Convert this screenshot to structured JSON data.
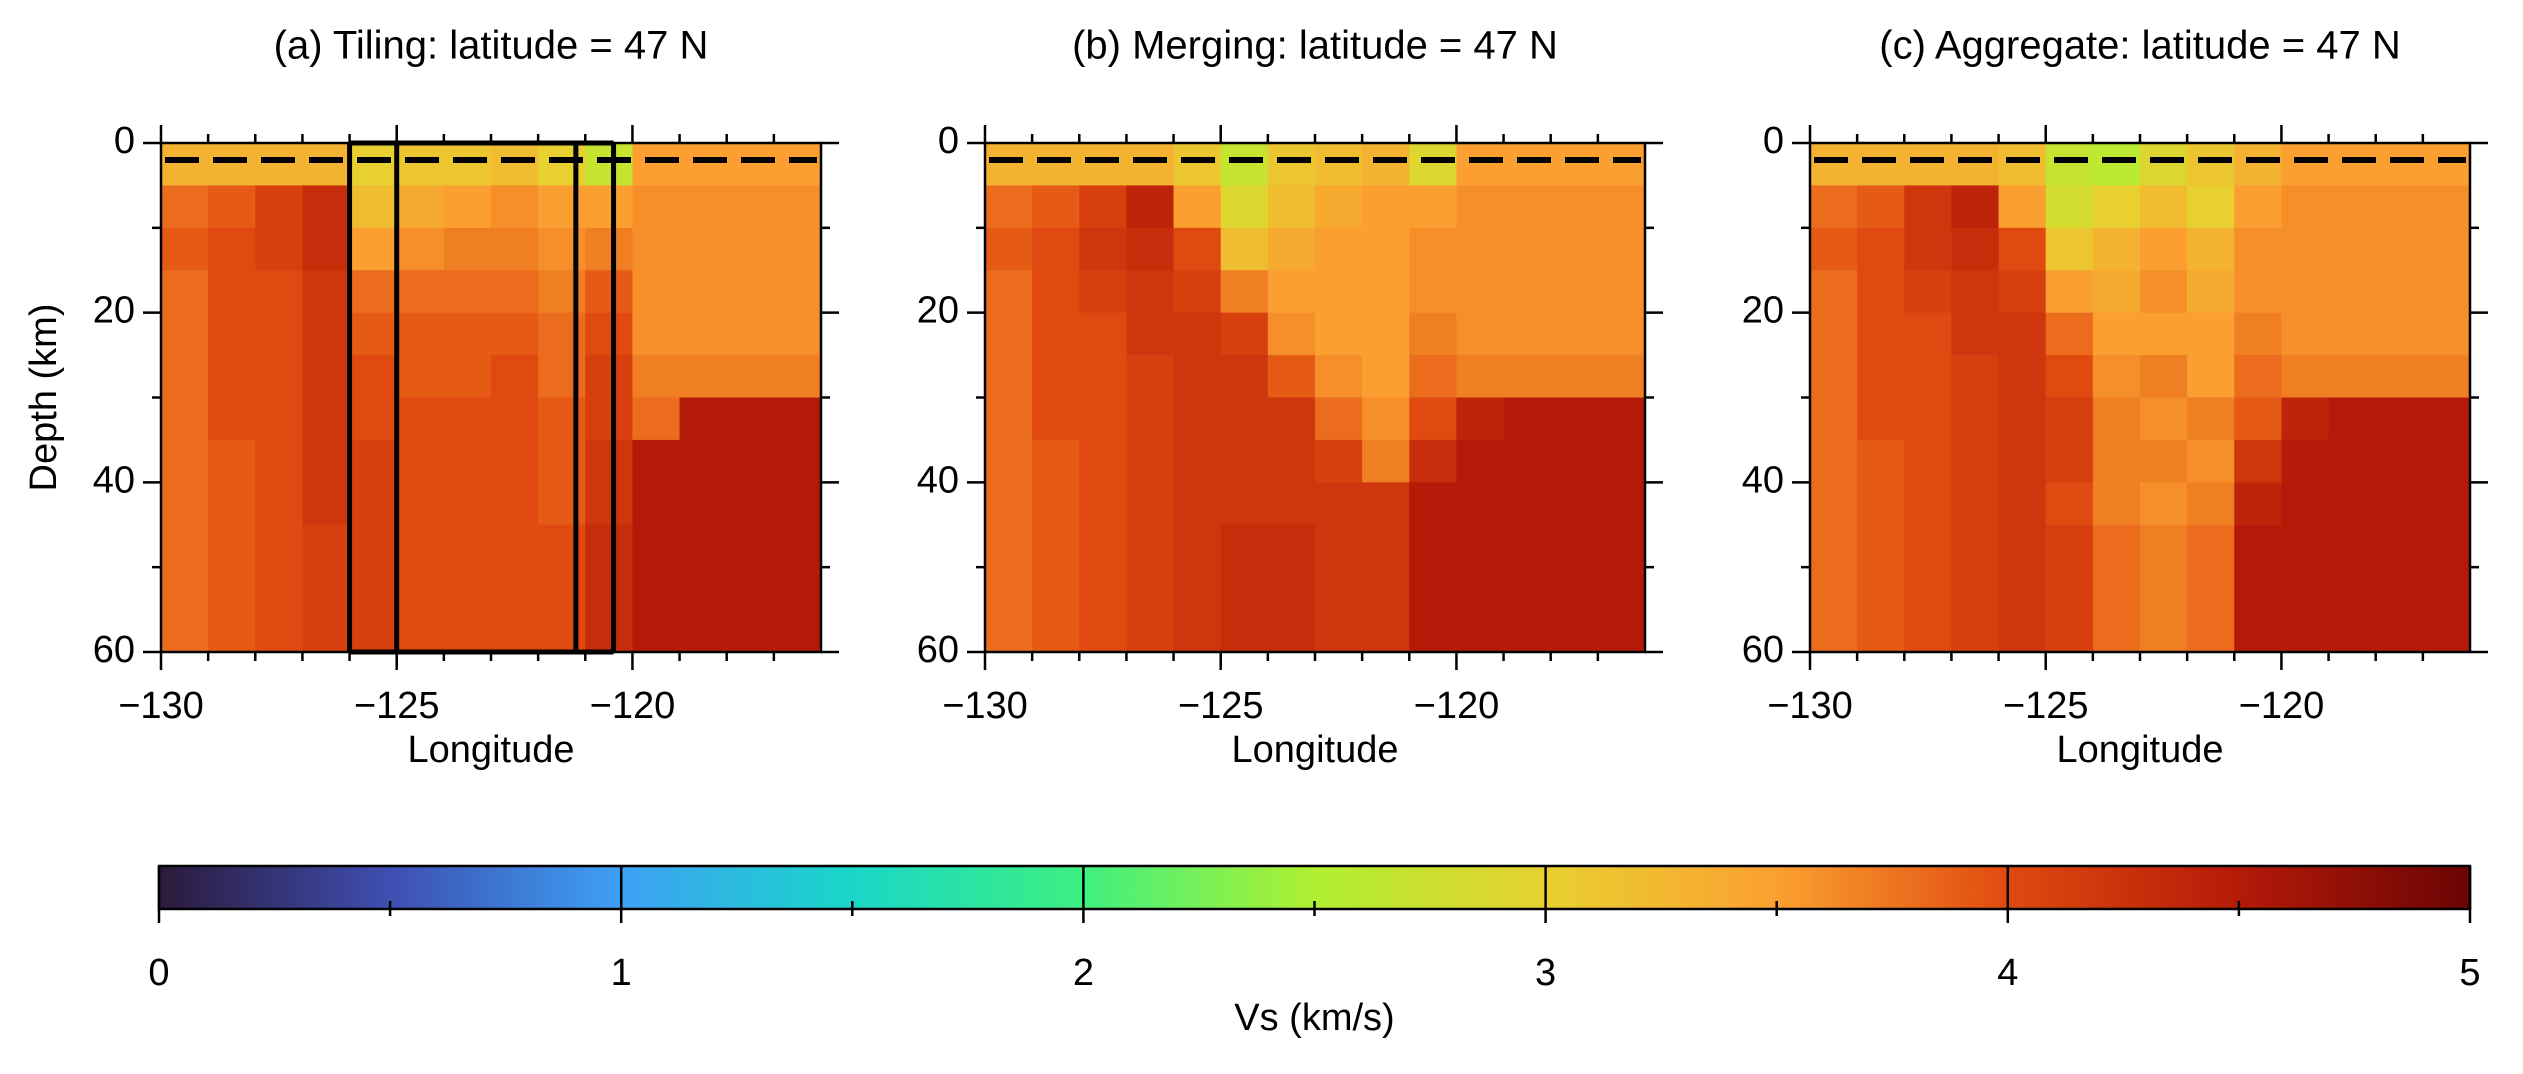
{
  "chart_data": [
    {
      "type": "heatmap",
      "title": "(a) Tiling: latitude = 47 N",
      "xlabel": "Longitude",
      "ylabel": "Depth (km)",
      "xlim": [
        -130,
        -116
      ],
      "ylim": [
        0,
        60
      ],
      "yreverse": true,
      "xticks": [
        {
          "value": -130,
          "label": "−130"
        },
        {
          "value": -125,
          "label": "−125"
        },
        {
          "value": -120,
          "label": "−120"
        }
      ],
      "xminorticks": [
        -129,
        -128,
        -127,
        -126,
        -124,
        -123,
        -122,
        -121,
        -119,
        -118,
        -117
      ],
      "yticks": [
        0,
        20,
        40,
        60
      ],
      "yminorticks": [
        10,
        30,
        50
      ],
      "reference_depth": 2,
      "tile_edges": [
        -126,
        -125,
        -121.2,
        -120.4
      ],
      "xbins": [
        -130,
        -129,
        -128,
        -127,
        -126,
        -125,
        -124,
        -123,
        -122,
        -121,
        -120,
        -119,
        -118,
        -117,
        -116
      ],
      "ybins": [
        0,
        5,
        10,
        15,
        20,
        25,
        30,
        35,
        40,
        45,
        50,
        55,
        60
      ],
      "values": [
        [
          3.3,
          3.3,
          3.3,
          3.3,
          3.0,
          3.1,
          3.1,
          3.2,
          3.0,
          2.7,
          3.5,
          3.5,
          3.5,
          3.5
        ],
        [
          3.8,
          3.9,
          4.1,
          4.3,
          3.2,
          3.4,
          3.5,
          3.6,
          3.5,
          3.5,
          3.6,
          3.6,
          3.6,
          3.6
        ],
        [
          3.9,
          4.0,
          4.1,
          4.3,
          3.5,
          3.6,
          3.7,
          3.7,
          3.6,
          3.7,
          3.6,
          3.6,
          3.6,
          3.6
        ],
        [
          3.8,
          4.0,
          4.0,
          4.2,
          3.8,
          3.8,
          3.8,
          3.8,
          3.7,
          3.9,
          3.6,
          3.6,
          3.6,
          3.6
        ],
        [
          3.8,
          4.0,
          4.0,
          4.2,
          3.9,
          3.9,
          3.9,
          3.9,
          3.8,
          4.0,
          3.6,
          3.6,
          3.6,
          3.6
        ],
        [
          3.8,
          4.0,
          4.0,
          4.2,
          4.0,
          3.9,
          3.9,
          4.0,
          3.8,
          4.1,
          3.7,
          3.7,
          3.7,
          3.7
        ],
        [
          3.8,
          4.0,
          4.0,
          4.2,
          4.0,
          4.0,
          4.0,
          4.0,
          3.9,
          4.1,
          3.8,
          4.5,
          4.5,
          4.5
        ],
        [
          3.8,
          3.9,
          4.0,
          4.2,
          4.1,
          4.0,
          4.0,
          4.0,
          3.9,
          4.2,
          4.5,
          4.5,
          4.5,
          4.5
        ],
        [
          3.8,
          3.9,
          4.0,
          4.2,
          4.1,
          4.0,
          4.0,
          4.0,
          3.9,
          4.2,
          4.5,
          4.5,
          4.5,
          4.5
        ],
        [
          3.8,
          3.9,
          4.0,
          4.1,
          4.1,
          4.0,
          4.0,
          4.0,
          4.0,
          4.3,
          4.5,
          4.5,
          4.5,
          4.5
        ],
        [
          3.8,
          3.9,
          4.0,
          4.1,
          4.1,
          4.0,
          4.0,
          4.0,
          4.0,
          4.3,
          4.5,
          4.5,
          4.5,
          4.5
        ],
        [
          3.8,
          3.9,
          4.0,
          4.1,
          4.1,
          4.0,
          4.0,
          4.0,
          4.0,
          4.3,
          4.5,
          4.5,
          4.5,
          4.5
        ]
      ]
    },
    {
      "type": "heatmap",
      "title": "(b) Merging: latitude = 47 N",
      "xlabel": "Longitude",
      "xlim": [
        -130,
        -116
      ],
      "ylim": [
        0,
        60
      ],
      "yreverse": true,
      "xticks": [
        {
          "value": -130,
          "label": "−130"
        },
        {
          "value": -125,
          "label": "−125"
        },
        {
          "value": -120,
          "label": "−120"
        }
      ],
      "xminorticks": [
        -129,
        -128,
        -127,
        -126,
        -124,
        -123,
        -122,
        -121,
        -119,
        -118,
        -117
      ],
      "yticks": [
        0,
        20,
        40,
        60
      ],
      "yminorticks": [
        10,
        30,
        50
      ],
      "reference_depth": 2,
      "xbins": [
        -130,
        -129,
        -128,
        -127,
        -126,
        -125,
        -124,
        -123,
        -122,
        -121,
        -120,
        -119,
        -118,
        -117,
        -116
      ],
      "ybins": [
        0,
        5,
        10,
        15,
        20,
        25,
        30,
        35,
        40,
        45,
        50,
        55,
        60
      ],
      "values": [
        [
          3.3,
          3.3,
          3.3,
          3.3,
          3.1,
          2.7,
          3.1,
          3.2,
          3.3,
          2.9,
          3.5,
          3.5,
          3.5,
          3.5
        ],
        [
          3.8,
          3.9,
          4.1,
          4.4,
          3.5,
          2.9,
          3.2,
          3.4,
          3.5,
          3.5,
          3.6,
          3.6,
          3.6,
          3.6
        ],
        [
          3.9,
          4.0,
          4.2,
          4.3,
          4.0,
          3.2,
          3.4,
          3.5,
          3.5,
          3.6,
          3.6,
          3.6,
          3.6,
          3.6
        ],
        [
          3.8,
          4.0,
          4.1,
          4.2,
          4.1,
          3.7,
          3.5,
          3.5,
          3.5,
          3.6,
          3.6,
          3.6,
          3.6,
          3.6
        ],
        [
          3.8,
          4.0,
          4.0,
          4.2,
          4.2,
          4.1,
          3.6,
          3.5,
          3.5,
          3.7,
          3.6,
          3.6,
          3.6,
          3.6
        ],
        [
          3.8,
          4.0,
          4.0,
          4.1,
          4.2,
          4.2,
          3.9,
          3.6,
          3.5,
          3.8,
          3.7,
          3.7,
          3.7,
          3.7
        ],
        [
          3.8,
          4.0,
          4.0,
          4.1,
          4.2,
          4.2,
          4.2,
          3.8,
          3.6,
          4.0,
          4.4,
          4.5,
          4.5,
          4.5
        ],
        [
          3.8,
          3.9,
          4.0,
          4.1,
          4.2,
          4.2,
          4.2,
          4.1,
          3.7,
          4.3,
          4.5,
          4.5,
          4.5,
          4.5
        ],
        [
          3.8,
          3.9,
          4.0,
          4.1,
          4.2,
          4.2,
          4.2,
          4.2,
          4.2,
          4.5,
          4.5,
          4.5,
          4.5,
          4.5
        ],
        [
          3.8,
          3.9,
          4.0,
          4.1,
          4.2,
          4.3,
          4.3,
          4.2,
          4.2,
          4.5,
          4.5,
          4.5,
          4.5,
          4.5
        ],
        [
          3.8,
          3.9,
          4.0,
          4.1,
          4.2,
          4.3,
          4.3,
          4.2,
          4.2,
          4.5,
          4.5,
          4.5,
          4.5,
          4.5
        ],
        [
          3.8,
          3.9,
          4.0,
          4.1,
          4.2,
          4.3,
          4.3,
          4.2,
          4.2,
          4.5,
          4.5,
          4.5,
          4.5,
          4.5
        ]
      ]
    },
    {
      "type": "heatmap",
      "title": "(c) Aggregate: latitude = 47 N",
      "xlabel": "Longitude",
      "xlim": [
        -130,
        -116
      ],
      "ylim": [
        0,
        60
      ],
      "yreverse": true,
      "xticks": [
        {
          "value": -130,
          "label": "−130"
        },
        {
          "value": -125,
          "label": "−125"
        },
        {
          "value": -120,
          "label": "−120"
        }
      ],
      "xminorticks": [
        -129,
        -128,
        -127,
        -126,
        -124,
        -123,
        -122,
        -121,
        -119,
        -118,
        -117
      ],
      "yticks": [
        0,
        20,
        40,
        60
      ],
      "yminorticks": [
        10,
        30,
        50
      ],
      "reference_depth": 2,
      "xbins": [
        -130,
        -129,
        -128,
        -127,
        -126,
        -125,
        -124,
        -123,
        -122,
        -121,
        -120,
        -119,
        -118,
        -117,
        -116
      ],
      "ybins": [
        0,
        5,
        10,
        15,
        20,
        25,
        30,
        35,
        40,
        45,
        50,
        55,
        60
      ],
      "values": [
        [
          3.3,
          3.3,
          3.3,
          3.3,
          3.2,
          2.7,
          2.6,
          2.9,
          3.1,
          3.3,
          3.5,
          3.5,
          3.5,
          3.5
        ],
        [
          3.8,
          3.9,
          4.2,
          4.4,
          3.5,
          2.8,
          3.0,
          3.2,
          3.0,
          3.5,
          3.6,
          3.6,
          3.6,
          3.6
        ],
        [
          3.9,
          4.0,
          4.2,
          4.3,
          4.0,
          3.1,
          3.3,
          3.5,
          3.3,
          3.6,
          3.6,
          3.6,
          3.6,
          3.6
        ],
        [
          3.8,
          4.0,
          4.1,
          4.2,
          4.1,
          3.5,
          3.4,
          3.6,
          3.4,
          3.6,
          3.6,
          3.6,
          3.6,
          3.6
        ],
        [
          3.8,
          4.0,
          4.0,
          4.2,
          4.2,
          3.8,
          3.5,
          3.5,
          3.5,
          3.7,
          3.6,
          3.6,
          3.6,
          3.6
        ],
        [
          3.8,
          4.0,
          4.0,
          4.1,
          4.2,
          4.0,
          3.6,
          3.7,
          3.5,
          3.8,
          3.7,
          3.7,
          3.7,
          3.7
        ],
        [
          3.8,
          4.0,
          4.0,
          4.1,
          4.2,
          4.1,
          3.7,
          3.6,
          3.7,
          3.9,
          4.4,
          4.5,
          4.5,
          4.5
        ],
        [
          3.8,
          3.9,
          4.0,
          4.1,
          4.2,
          4.1,
          3.7,
          3.7,
          3.6,
          4.2,
          4.5,
          4.5,
          4.5,
          4.5
        ],
        [
          3.8,
          3.9,
          4.0,
          4.1,
          4.2,
          4.0,
          3.7,
          3.6,
          3.7,
          4.4,
          4.5,
          4.5,
          4.5,
          4.5
        ],
        [
          3.8,
          3.9,
          4.0,
          4.1,
          4.2,
          4.1,
          3.8,
          3.7,
          3.8,
          4.5,
          4.5,
          4.5,
          4.5,
          4.5
        ],
        [
          3.8,
          3.9,
          4.0,
          4.1,
          4.2,
          4.1,
          3.8,
          3.7,
          3.8,
          4.5,
          4.5,
          4.5,
          4.5,
          4.5
        ],
        [
          3.8,
          3.9,
          4.0,
          4.1,
          4.2,
          4.1,
          3.8,
          3.7,
          3.8,
          4.5,
          4.5,
          4.5,
          4.5,
          4.5
        ]
      ]
    },
    {
      "type": "colorbar",
      "label": "Vs (km/s)",
      "lim": [
        0,
        5
      ],
      "ticks": [
        0,
        1,
        2,
        3,
        4,
        5
      ],
      "minor_ticks": [
        0.5,
        1.5,
        2.5,
        3.5,
        4.5
      ],
      "colors": [
        "#2b1a3a",
        "#3e4fb0",
        "#3ea0f5",
        "#1ad6c8",
        "#3ef080",
        "#b0f030",
        "#e8d030",
        "#fba030",
        "#e04a10",
        "#b41a08",
        "#6a0404"
      ]
    }
  ]
}
